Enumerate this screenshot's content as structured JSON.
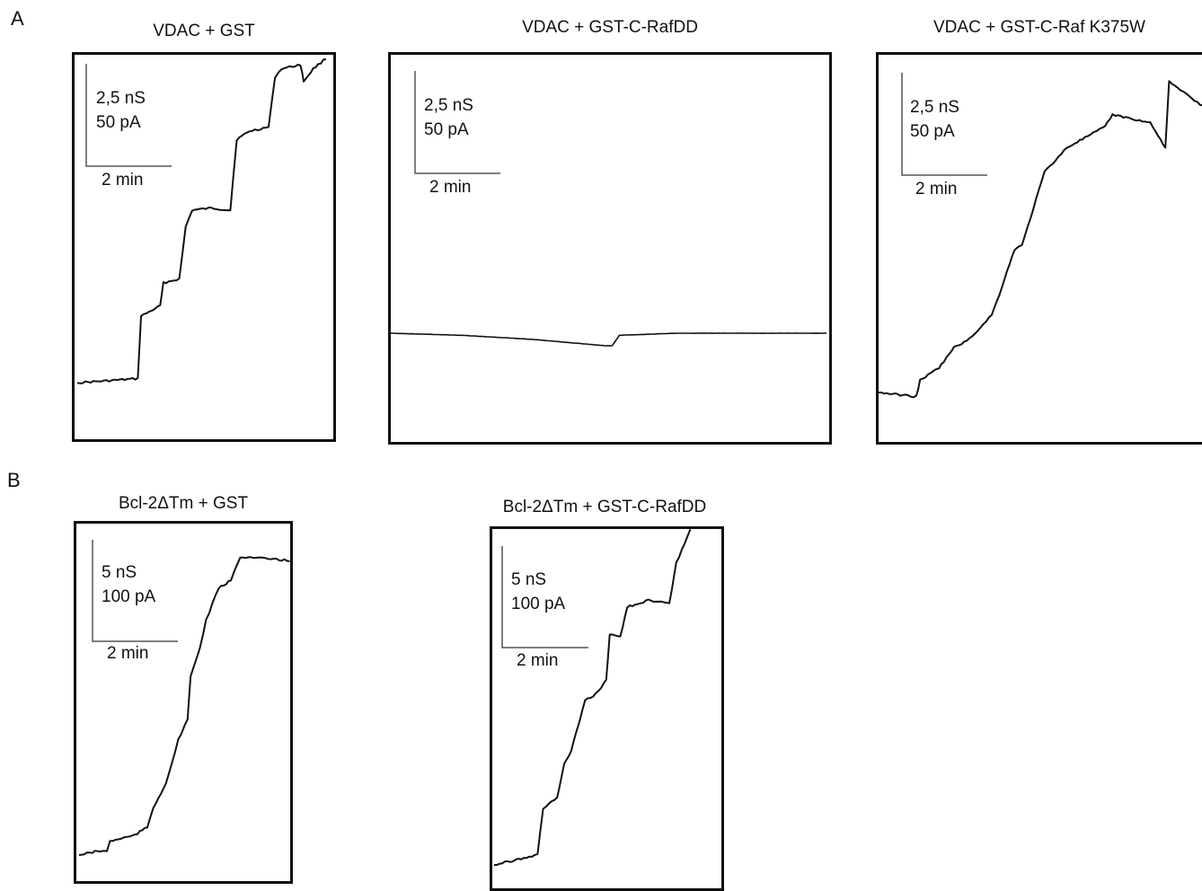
{
  "figure": {
    "panel_a_letter": "A",
    "panel_b_letter": "B"
  },
  "chart_data": [
    {
      "type": "line",
      "title": "VDAC + GST",
      "scalebar": {
        "conductance": "2,5 nS",
        "current": "50 pA",
        "time": "2 min"
      },
      "x": [
        0,
        0.5,
        0.95,
        1.0,
        1.3,
        1.35,
        1.6,
        1.7,
        1.8,
        2.1,
        2.4,
        2.5,
        2.7,
        3.0,
        3.1,
        3.2,
        3.5,
        3.55,
        3.7,
        3.9
      ],
      "y": [
        0.45,
        0.5,
        0.55,
        2.05,
        2.3,
        2.85,
        2.95,
        4.2,
        4.6,
        4.65,
        4.6,
        6.3,
        6.5,
        6.6,
        7.8,
        8.0,
        8.1,
        7.7,
        8.0,
        8.25
      ]
    },
    {
      "type": "line",
      "title": "VDAC + GST-C-RafDD",
      "scalebar": {
        "conductance": "2,5 nS",
        "current": "50 pA",
        "time": "2 min"
      },
      "x": [
        0,
        1,
        2,
        3,
        3.1,
        3.2,
        4,
        5,
        6.1
      ],
      "y": [
        0.0,
        -0.05,
        -0.15,
        -0.3,
        -0.3,
        -0.05,
        0.0,
        0.0,
        0.0
      ]
    },
    {
      "type": "line",
      "title": "VDAC + GST-C-Raf K375W",
      "scalebar": {
        "conductance": "2,5 nS",
        "current": "50 pA",
        "time": "2 min"
      },
      "x": [
        0,
        0.5,
        0.55,
        0.8,
        1.0,
        1.2,
        1.5,
        1.6,
        1.8,
        1.9,
        2.2,
        2.5,
        2.7,
        3.0,
        3.1,
        3.6,
        3.8,
        3.85,
        4.0,
        4.3
      ],
      "y": [
        0.0,
        -0.1,
        0.3,
        0.6,
        1.1,
        1.3,
        1.9,
        2.4,
        3.5,
        3.6,
        5.4,
        6.0,
        6.2,
        6.5,
        6.8,
        6.6,
        6.0,
        7.6,
        7.4,
        7.0
      ]
    },
    {
      "type": "line",
      "title": "Bcl-2ΔTm + GST",
      "scalebar": {
        "conductance": "5 nS",
        "current": "100 pA",
        "time": "2 min"
      },
      "x": [
        0,
        0.3,
        0.45,
        0.5,
        0.9,
        1.1,
        1.2,
        1.4,
        1.5,
        1.6,
        1.75,
        1.8,
        1.95,
        2.05,
        2.15,
        2.25,
        2.45,
        2.6,
        3.0,
        3.4
      ],
      "y": [
        0.0,
        0.1,
        0.1,
        0.35,
        0.5,
        0.7,
        1.2,
        1.8,
        2.3,
        2.9,
        3.4,
        4.5,
        5.2,
        5.9,
        6.3,
        6.7,
        6.9,
        7.5,
        7.45,
        7.4
      ]
    },
    {
      "type": "line",
      "title": "Bcl-2ΔTm + GST-C-RafDD",
      "scalebar": {
        "conductance": "5 nS",
        "current": "100 pA",
        "time": "2 min"
      },
      "x": [
        0,
        0.5,
        0.62,
        0.7,
        0.9,
        1.0,
        1.1,
        1.3,
        1.45,
        1.6,
        1.65,
        1.8,
        1.9,
        2.2,
        2.5,
        2.6,
        2.8
      ],
      "y": [
        0.0,
        0.25,
        0.3,
        1.7,
        2.0,
        3.0,
        3.4,
        4.9,
        5.1,
        5.5,
        6.9,
        6.8,
        7.7,
        7.9,
        7.8,
        9.0,
        10.0
      ]
    }
  ]
}
